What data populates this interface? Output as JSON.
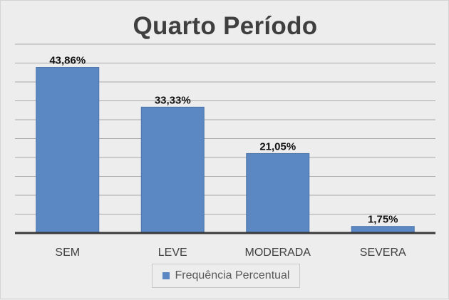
{
  "chart_data": {
    "type": "bar",
    "title": "Quarto Período",
    "categories": [
      "SEM",
      "LEVE",
      "MODERADA",
      "SEVERA"
    ],
    "series": [
      {
        "name": "Frequência Percentual",
        "values": [
          43.86,
          33.33,
          21.05,
          1.75
        ],
        "labels": [
          "43,86%",
          "33,33%",
          "21,05%",
          "1,75%"
        ]
      }
    ],
    "ylim": [
      0,
      50
    ],
    "grid": true,
    "legend": "bottom",
    "colors": {
      "bar": "#5b87c2",
      "bar_edge": "#4a72ab",
      "axis": "#3a3a3a",
      "grid": "#a9a9a9",
      "text": "#404040"
    }
  }
}
